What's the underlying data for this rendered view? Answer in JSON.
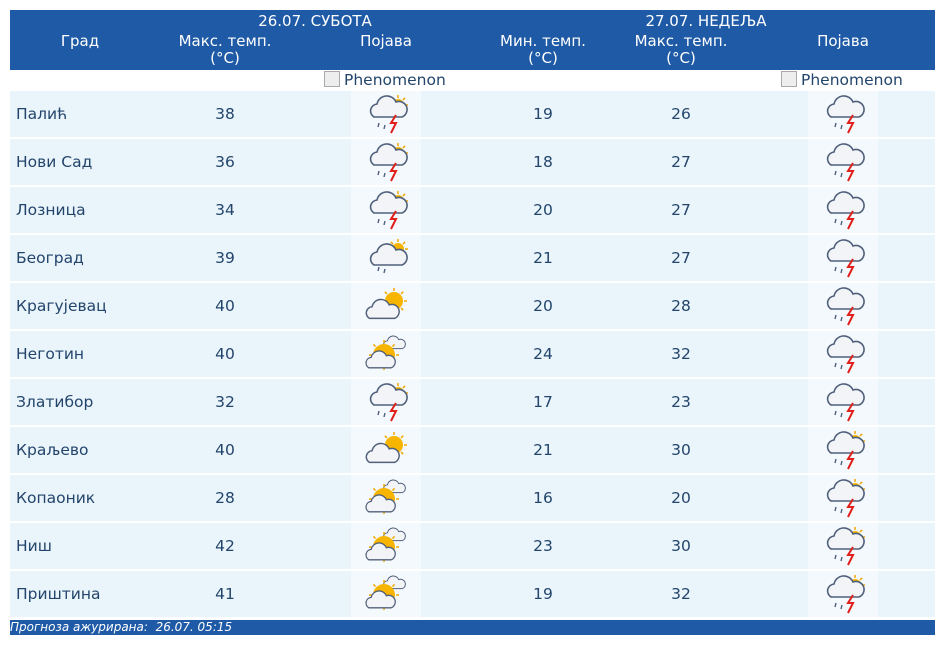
{
  "header": {
    "day1": "26.07. СУБОТА",
    "day2": "27.07. НЕДЕЉА",
    "columns": [
      "Град",
      "Макс. темп. (°C)",
      "Појава",
      "Мин. темп. (°C)",
      "Макс. темп. (°C)",
      "Појава"
    ]
  },
  "image_alts": [
    "Phenomenon",
    "Phenomenon"
  ],
  "table": {
    "rows": [
      [
        "Палић",
        38,
        19,
        26
      ],
      [
        "Нови Сад",
        36,
        18,
        27
      ],
      [
        "Лозница",
        34,
        20,
        27
      ],
      [
        "Београд",
        39,
        21,
        27
      ],
      [
        "Крагујевац",
        40,
        20,
        28
      ],
      [
        "Неготин",
        40,
        24,
        32
      ],
      [
        "Златибор",
        32,
        17,
        23
      ],
      [
        "Краљево",
        40,
        21,
        30
      ],
      [
        "Копаоник",
        28,
        16,
        20
      ],
      [
        "Ниш",
        42,
        23,
        30
      ],
      [
        "Приштина",
        41,
        19,
        32
      ]
    ]
  },
  "footer": {
    "label": "Прогноза ажурирана:",
    "time": "26.07. 05:15"
  }
}
